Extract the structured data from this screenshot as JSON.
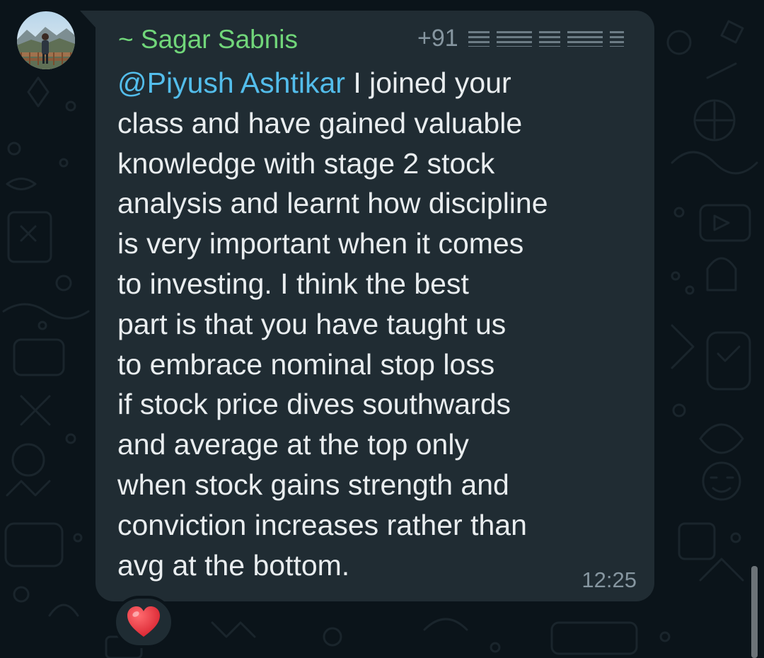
{
  "message": {
    "sender_name": "~ Sagar Sabnis",
    "sender_phone_prefix": "+91",
    "mention": "@Piyush Ashtikar",
    "lines": [
      " I joined your",
      "class and have gained valuable",
      "knowledge with stage 2 stock",
      "analysis and learnt how discipline",
      "is very important when it comes",
      "to investing. I think the best",
      "part is that you have taught us",
      "to embrace nominal stop loss",
      "if stock price dives southwards",
      "and average at the top only",
      "when stock gains strength and",
      "conviction increases rather than",
      "avg at the bottom."
    ],
    "time": "12:25"
  },
  "reaction": {
    "emoji": "heart-icon"
  },
  "colors": {
    "background": "#0b141a",
    "bubble": "#202c33",
    "sender_name": "#71d67a",
    "mention": "#53bdeb",
    "text": "#e9edef",
    "meta": "#8696a0",
    "heart": "#e8303a"
  }
}
